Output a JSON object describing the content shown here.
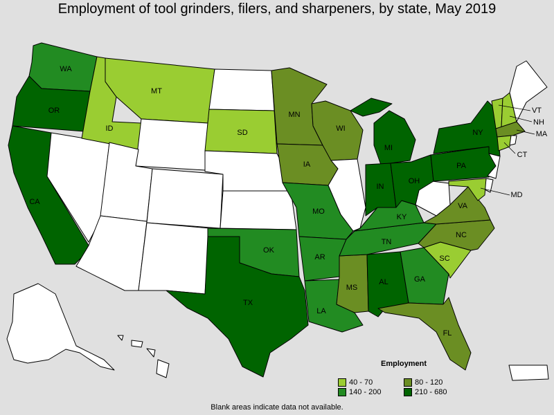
{
  "title": "Employment of tool grinders, filers, and sharpeners, by state, May 2019",
  "legend": {
    "title": "Employment",
    "bins": [
      {
        "label": "40 - 70",
        "color": "#9acd32"
      },
      {
        "label": "80 - 120",
        "color": "#6b8e23"
      },
      {
        "label": "140 - 200",
        "color": "#228b22"
      },
      {
        "label": "210 - 680",
        "color": "#006400"
      }
    ]
  },
  "no_data_color": "#ffffff",
  "note": "Blank areas indicate data not available.",
  "states": [
    {
      "code": "WA",
      "bin": 2
    },
    {
      "code": "OR",
      "bin": 3
    },
    {
      "code": "CA",
      "bin": 3
    },
    {
      "code": "ID",
      "bin": 0
    },
    {
      "code": "MT",
      "bin": 0
    },
    {
      "code": "SD",
      "bin": 0
    },
    {
      "code": "MN",
      "bin": 1
    },
    {
      "code": "WI",
      "bin": 1
    },
    {
      "code": "IA",
      "bin": 1
    },
    {
      "code": "MO",
      "bin": 2
    },
    {
      "code": "OK",
      "bin": 2
    },
    {
      "code": "TX",
      "bin": 3
    },
    {
      "code": "AR",
      "bin": 2
    },
    {
      "code": "LA",
      "bin": 2
    },
    {
      "code": "MS",
      "bin": 1
    },
    {
      "code": "AL",
      "bin": 3
    },
    {
      "code": "GA",
      "bin": 2
    },
    {
      "code": "FL",
      "bin": 1
    },
    {
      "code": "SC",
      "bin": 0
    },
    {
      "code": "NC",
      "bin": 1
    },
    {
      "code": "VA",
      "bin": 1
    },
    {
      "code": "TN",
      "bin": 2
    },
    {
      "code": "KY",
      "bin": 2
    },
    {
      "code": "IN",
      "bin": 3
    },
    {
      "code": "OH",
      "bin": 3
    },
    {
      "code": "MI",
      "bin": 3
    },
    {
      "code": "PA",
      "bin": 3
    },
    {
      "code": "NY",
      "bin": 3
    },
    {
      "code": "VT",
      "bin": 0
    },
    {
      "code": "NH",
      "bin": 0
    },
    {
      "code": "MA",
      "bin": 1
    },
    {
      "code": "CT",
      "bin": 0
    },
    {
      "code": "MD",
      "bin": 0
    },
    {
      "code": "NV",
      "bin": null
    },
    {
      "code": "UT",
      "bin": null
    },
    {
      "code": "AZ",
      "bin": null
    },
    {
      "code": "WY",
      "bin": null
    },
    {
      "code": "CO",
      "bin": null
    },
    {
      "code": "NM",
      "bin": null
    },
    {
      "code": "ND",
      "bin": null
    },
    {
      "code": "NE",
      "bin": null
    },
    {
      "code": "KS",
      "bin": null
    },
    {
      "code": "IL",
      "bin": null
    },
    {
      "code": "WV",
      "bin": null
    },
    {
      "code": "ME",
      "bin": null
    },
    {
      "code": "RI",
      "bin": null
    },
    {
      "code": "NJ",
      "bin": null
    },
    {
      "code": "DE",
      "bin": null
    },
    {
      "code": "AK",
      "bin": null
    },
    {
      "code": "HI",
      "bin": null
    },
    {
      "code": "PR",
      "bin": null
    }
  ]
}
